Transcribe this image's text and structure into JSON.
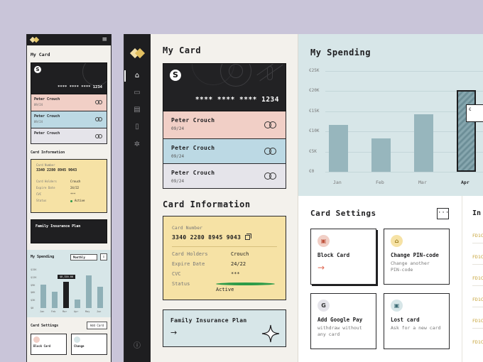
{
  "mobile": {
    "title": "My Card",
    "card_number": "**** **** **** 1234",
    "card_logo": "S",
    "strips": [
      {
        "name": "Peter Crouch",
        "expiry": "09/24"
      },
      {
        "name": "Peter Crouch",
        "expiry": "09/24"
      },
      {
        "name": "Peter Crouch",
        "expiry": ""
      }
    ],
    "info_title": "Card Information",
    "info": {
      "number_label": "Card Number",
      "number": "3340 2280 8945 9043",
      "rows": [
        {
          "label": "Card Holders",
          "value": "Crouch"
        },
        {
          "label": "Expire Date",
          "value": "24/22"
        },
        {
          "label": "CVC",
          "value": "***"
        },
        {
          "label": "Status",
          "value": "Active"
        }
      ]
    },
    "plan": "Family Insurance Plan",
    "spending": {
      "title": "My Spending",
      "period": "Monthly",
      "tooltip": "$8,320.00",
      "y_labels": [
        "$15K",
        "$12K",
        "$9K",
        "$6K",
        "$3K",
        "$0"
      ],
      "x_labels": [
        "Jan",
        "Feb",
        "Mar",
        "Apr",
        "May",
        "Jun"
      ],
      "values": [
        0.62,
        0.42,
        0.68,
        0.23,
        0.85,
        0.55
      ],
      "highlight_index": 2
    },
    "settings_title": "Card Settings",
    "add_card": "Add Card",
    "tiles": [
      "Block Card",
      "Change"
    ]
  },
  "sidebar": {
    "icons": [
      "home-icon",
      "card-icon",
      "document-icon",
      "phone-icon",
      "gear-icon",
      "info-icon"
    ]
  },
  "my_card": {
    "title": "My Card",
    "card_logo": "S",
    "card_number": "**** **** **** 1234",
    "strips": [
      {
        "name": "Peter Crouch",
        "expiry": "09/24"
      },
      {
        "name": "Peter Crouch",
        "expiry": "09/24"
      },
      {
        "name": "Peter Crouch",
        "expiry": "09/24"
      }
    ]
  },
  "card_info": {
    "title": "Card Information",
    "number_label": "Card Number",
    "number": "3340 2280 8945 9043",
    "rows": [
      {
        "label": "Card Holders",
        "value": "Crouch"
      },
      {
        "label": "Expire Date",
        "value": "24/22"
      },
      {
        "label": "CVC",
        "value": "***"
      },
      {
        "label": "Status",
        "value": "Active"
      }
    ],
    "status_color": "#2c9b48"
  },
  "plan": {
    "title": "Family Insurance Plan",
    "arrow": "→"
  },
  "chart_data": {
    "type": "bar",
    "title": "My Spending",
    "categories": [
      "Jan",
      "Feb",
      "Mar",
      "Apr"
    ],
    "values": [
      11700,
      8200,
      14300,
      20200
    ],
    "y_ticks": [
      "€25K",
      "€20K",
      "€15K",
      "€10K",
      "€5K",
      "€0"
    ],
    "ylim": [
      0,
      25000
    ],
    "highlight": "Apr",
    "tooltip_prefix": "€",
    "grid": true
  },
  "card_settings": {
    "title": "Card Settings",
    "more": "···",
    "tiles": [
      {
        "icon": "block-card-icon",
        "glyph": "▣",
        "title": "Block Card",
        "desc": "",
        "arrow": "→",
        "icon_bg": "#f1cfc6"
      },
      {
        "icon": "lock-icon",
        "glyph": "⌂",
        "title": "Change PIN-code",
        "desc": "Change another PIN-code",
        "arrow": "",
        "icon_bg": "#f6e2a5"
      },
      {
        "icon": "google-icon",
        "glyph": "G",
        "title": "Add Google Pay",
        "desc": "withdraw without any card",
        "arrow": "",
        "icon_bg": "#e5e4ea"
      },
      {
        "icon": "lost-card-icon",
        "glyph": "▣",
        "title": "Lost card",
        "desc": "Ask for a new card",
        "arrow": "",
        "icon_bg": "#d7e6e8"
      }
    ]
  },
  "intl": {
    "title": "In",
    "rows": [
      "FD1C",
      "FD1C",
      "FD1C",
      "FD1C",
      "FD1C",
      "FD1C"
    ]
  }
}
